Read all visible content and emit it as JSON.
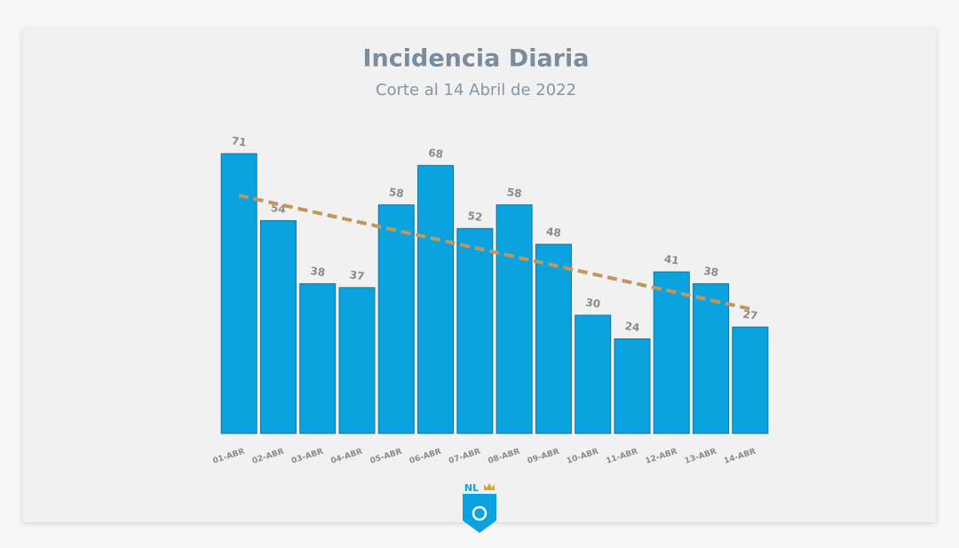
{
  "chart_data": {
    "type": "bar",
    "title": "Incidencia Diaria",
    "subtitle": "Corte al 14 Abril de 2022",
    "categories": [
      "01-ABR",
      "02-ABR",
      "03-ABR",
      "04-ABR",
      "05-ABR",
      "06-ABR",
      "07-ABR",
      "08-ABR",
      "09-ABR",
      "10-ABR",
      "11-ABR",
      "12-ABR",
      "13-ABR",
      "14-ABR"
    ],
    "values": [
      71,
      54,
      38,
      37,
      58,
      68,
      52,
      58,
      48,
      30,
      24,
      41,
      38,
      27
    ],
    "color": "#0aa3df",
    "ylim": [
      0,
      71
    ],
    "trend": {
      "color": "#c4955c",
      "values": [
        60.4,
        31.6
      ]
    }
  },
  "logo": "NL"
}
